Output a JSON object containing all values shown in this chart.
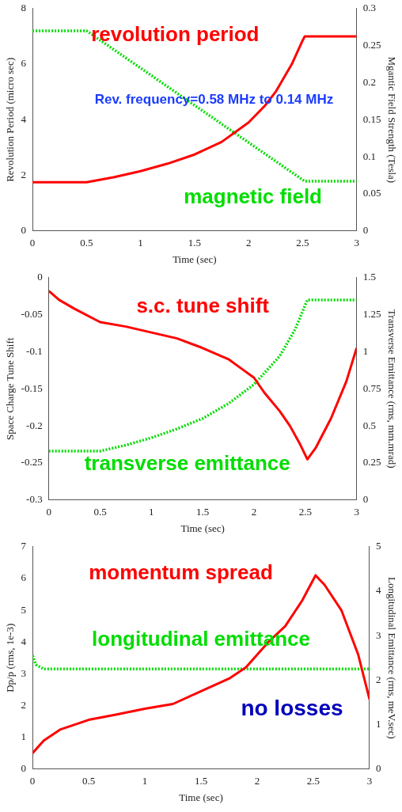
{
  "chart_data": [
    {
      "type": "line",
      "xlabel": "Time (sec)",
      "ylabel": "Revolution Period (micro sec)",
      "y2label": "Mgantic Field Strength (Tesla)",
      "xlim": [
        0,
        3
      ],
      "xticks": [
        0,
        0.5,
        1,
        1.5,
        2,
        2.5,
        3
      ],
      "ylim": [
        0,
        8
      ],
      "yticks": [
        0,
        2,
        4,
        6,
        8
      ],
      "y2lim": [
        0,
        0.3
      ],
      "y2ticks": [
        0,
        0.05,
        0.1,
        0.15,
        0.2,
        0.25,
        0.3
      ],
      "grid": false,
      "legend": false,
      "marker": "none",
      "annotations": [
        "Rev. frequency=0.58 MHz to 0.14 MHz"
      ],
      "series": [
        {
          "name": "revolution period",
          "color": "#ff0000",
          "line_style": "solid",
          "x": [
            0,
            0.5,
            0.75,
            1,
            1.25,
            1.5,
            1.75,
            2,
            2.15,
            2.25,
            2.4,
            2.5,
            2.52,
            3
          ],
          "values": [
            1.75,
            1.75,
            1.93,
            2.15,
            2.42,
            2.75,
            3.2,
            3.9,
            4.5,
            5.0,
            6.0,
            6.85,
            7.0,
            7.0
          ]
        },
        {
          "name": "magnetic field",
          "color": "#00dd00",
          "line_style": "dotted",
          "axis": "y2",
          "x": [
            0,
            0.5,
            2.52,
            3
          ],
          "values": [
            0.27,
            0.27,
            0.067,
            0.067
          ]
        }
      ]
    },
    {
      "type": "line",
      "xlabel": "Time (sec)",
      "ylabel": "Space Charge Tune Shift",
      "y2label": "Transverse Emittance (rms, mm.mrad)",
      "xlim": [
        0,
        3
      ],
      "xticks": [
        0,
        0.5,
        1,
        1.5,
        2,
        2.5,
        3
      ],
      "ylim": [
        -0.3,
        0
      ],
      "yticks": [
        -0.3,
        -0.25,
        -0.2,
        -0.15,
        -0.1,
        -0.05,
        0
      ],
      "y2lim": [
        0,
        1.5
      ],
      "y2ticks": [
        0,
        0.25,
        0.5,
        0.75,
        1,
        1.25,
        1.5
      ],
      "grid": false,
      "legend": false,
      "marker": "none",
      "series": [
        {
          "name": "s.c. tune shift",
          "color": "#ff0000",
          "line_style": "solid",
          "x": [
            0,
            0.1,
            0.25,
            0.5,
            0.75,
            1,
            1.25,
            1.5,
            1.75,
            1.9,
            2,
            2.1,
            2.25,
            2.35,
            2.45,
            2.52,
            2.6,
            2.75,
            2.9,
            3
          ],
          "values": [
            -0.018,
            -0.03,
            -0.042,
            -0.06,
            -0.066,
            -0.074,
            -0.082,
            -0.095,
            -0.11,
            -0.125,
            -0.135,
            -0.155,
            -0.18,
            -0.2,
            -0.225,
            -0.245,
            -0.23,
            -0.19,
            -0.14,
            -0.095
          ]
        },
        {
          "name": "transverse emittance",
          "color": "#00dd00",
          "line_style": "dotted",
          "axis": "y2",
          "x": [
            0,
            0.5,
            0.75,
            1,
            1.25,
            1.5,
            1.75,
            2,
            2.25,
            2.4,
            2.52,
            3
          ],
          "values": [
            0.33,
            0.33,
            0.37,
            0.42,
            0.48,
            0.55,
            0.65,
            0.78,
            0.97,
            1.15,
            1.35,
            1.35
          ]
        }
      ]
    },
    {
      "type": "line",
      "xlabel": "Time (sec)",
      "ylabel": "Dp/p (rms, 1e-3)",
      "y2label": "Longitudinal Emittance (rms, meV.sec)",
      "xlim": [
        0,
        3
      ],
      "xticks": [
        0,
        0.5,
        1,
        1.5,
        2,
        2.5,
        3
      ],
      "ylim": [
        0,
        7
      ],
      "yticks": [
        0,
        1,
        2,
        3,
        4,
        5,
        6,
        7
      ],
      "y2lim": [
        0,
        5
      ],
      "y2ticks": [
        0,
        1,
        2,
        3,
        4,
        5
      ],
      "grid": false,
      "legend": false,
      "marker": "none",
      "annotations": [
        "no losses"
      ],
      "series": [
        {
          "name": "momentum spread",
          "color": "#ff0000",
          "line_style": "solid",
          "x": [
            0,
            0.1,
            0.25,
            0.5,
            0.75,
            1,
            1.25,
            1.5,
            1.75,
            1.9,
            2,
            2.1,
            2.25,
            2.4,
            2.52,
            2.6,
            2.75,
            2.9,
            3
          ],
          "values": [
            0.5,
            0.9,
            1.25,
            1.55,
            1.72,
            1.9,
            2.05,
            2.45,
            2.85,
            3.2,
            3.6,
            4.0,
            4.5,
            5.3,
            6.1,
            5.8,
            5.0,
            3.6,
            2.2
          ]
        },
        {
          "name": "longitudinal emittance",
          "color": "#00dd00",
          "line_style": "dotted",
          "axis": "y2",
          "x": [
            0,
            0.03,
            0.1,
            3
          ],
          "values": [
            2.55,
            2.35,
            2.25,
            2.25
          ]
        }
      ]
    }
  ]
}
